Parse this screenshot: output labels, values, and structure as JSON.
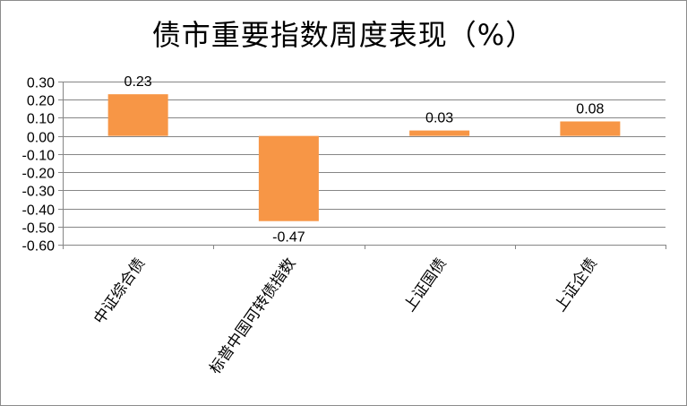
{
  "chart_data": {
    "type": "bar",
    "title": "债市重要指数周度表现（%）",
    "categories": [
      "中证综合债",
      "标普中国可转债指数",
      "上证国债",
      "上证企债"
    ],
    "values": [
      0.23,
      -0.47,
      0.03,
      0.08
    ],
    "data_labels": [
      "0.23",
      "-0.47",
      "0.03",
      "0.08"
    ],
    "yticks": [
      "0.30",
      "0.20",
      "0.10",
      "0.00",
      "-0.10",
      "-0.20",
      "-0.30",
      "-0.40",
      "-0.50",
      "-0.60"
    ],
    "ylim": [
      -0.6,
      0.3
    ],
    "bar_color": "#F79646",
    "grid": true,
    "legend": "none"
  }
}
